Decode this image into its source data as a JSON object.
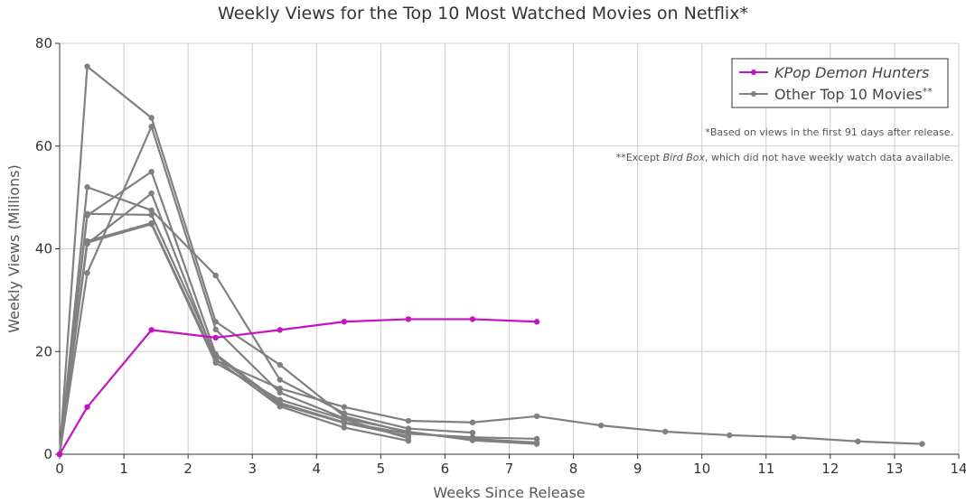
{
  "chart_data": {
    "type": "line",
    "title": "Weekly Views for the Top 10 Most Watched Movies on Netflix*",
    "xlabel": "Weeks Since Release",
    "ylabel": "Weekly Views (Millions)",
    "xlim": [
      0,
      14
    ],
    "ylim": [
      0,
      80
    ],
    "xticks": [
      0,
      1,
      2,
      3,
      4,
      5,
      6,
      7,
      8,
      9,
      10,
      11,
      12,
      13,
      14
    ],
    "yticks": [
      0,
      20,
      40,
      60,
      80
    ],
    "grid": true,
    "legend_position": "top-right",
    "legend": [
      {
        "label": "KPop Demon Hunters",
        "color": "#c412c4",
        "italic": true
      },
      {
        "label": "Other Top 10 Movies",
        "color": "#808080",
        "suffix": "**"
      }
    ],
    "notes": {
      "note1": "*Based on views in the first 91 days after release.",
      "note2_prefix": "**Except ",
      "note2_italic": "Bird Box",
      "note2_suffix": ", which did not have weekly watch data available."
    },
    "series": [
      {
        "name": "KPop Demon Hunters",
        "color": "#c412c4",
        "x": [
          0,
          0.43,
          1.43,
          2.43,
          3.43,
          4.43,
          5.43,
          6.43,
          7.43
        ],
        "y": [
          0,
          9.2,
          24.2,
          22.7,
          24.2,
          25.8,
          26.3,
          26.3,
          25.8
        ]
      },
      {
        "color": "#808080",
        "x": [
          0,
          0.43,
          1.43,
          2.43,
          3.43,
          4.43,
          5.43,
          6.43,
          7.43,
          8.43,
          9.43,
          10.43,
          11.43,
          12.43,
          13.43
        ],
        "y": [
          0,
          41.5,
          45,
          18.3,
          12.8,
          9.2,
          6.5,
          6.2,
          7.4,
          5.6,
          4.4,
          3.7,
          3.3,
          2.5,
          2.0
        ]
      },
      {
        "color": "#808080",
        "x": [
          0,
          0.43,
          1.43,
          2.43,
          3.43,
          4.43,
          5.43,
          6.43,
          7.43
        ],
        "y": [
          0,
          75.5,
          65.5,
          25.8,
          17.4,
          7.4,
          4.2,
          3.0,
          2.3
        ]
      },
      {
        "color": "#808080",
        "x": [
          0,
          0.43,
          1.43,
          2.43,
          3.43,
          4.43,
          5.43,
          6.43,
          7.43
        ],
        "y": [
          0,
          35.3,
          63.8,
          24.3,
          12.0,
          7.0,
          4.4,
          2.7,
          2.0
        ]
      },
      {
        "color": "#808080",
        "x": [
          0,
          0.43,
          1.43,
          2.43,
          3.43,
          4.43,
          5.43,
          6.43
        ],
        "y": [
          0,
          52,
          47.5,
          34.8,
          14.5,
          8.0,
          5.0,
          4.2
        ]
      },
      {
        "color": "#808080",
        "x": [
          0,
          0.43,
          1.43,
          2.43,
          3.43,
          4.43,
          5.43,
          6.43,
          7.43
        ],
        "y": [
          0,
          46.5,
          55,
          19.5,
          10.0,
          6.2,
          4.0,
          3.3,
          3.0
        ]
      },
      {
        "color": "#808080",
        "x": [
          0,
          0.43,
          1.43,
          2.43,
          3.43,
          4.43,
          5.43
        ],
        "y": [
          0,
          41,
          50.8,
          18.5,
          9.3,
          5.2,
          2.6
        ]
      },
      {
        "color": "#808080",
        "x": [
          0,
          0.43,
          1.43,
          2.43,
          3.43,
          4.43,
          5.43
        ],
        "y": [
          0,
          46.8,
          46.6,
          19.2,
          9.7,
          6.1,
          3.5
        ]
      },
      {
        "color": "#808080",
        "x": [
          0,
          0.43,
          1.43,
          2.43,
          3.43,
          4.43,
          5.43
        ],
        "y": [
          0,
          41.2,
          44.8,
          17.8,
          10.6,
          6.8,
          3.1
        ]
      }
    ]
  }
}
